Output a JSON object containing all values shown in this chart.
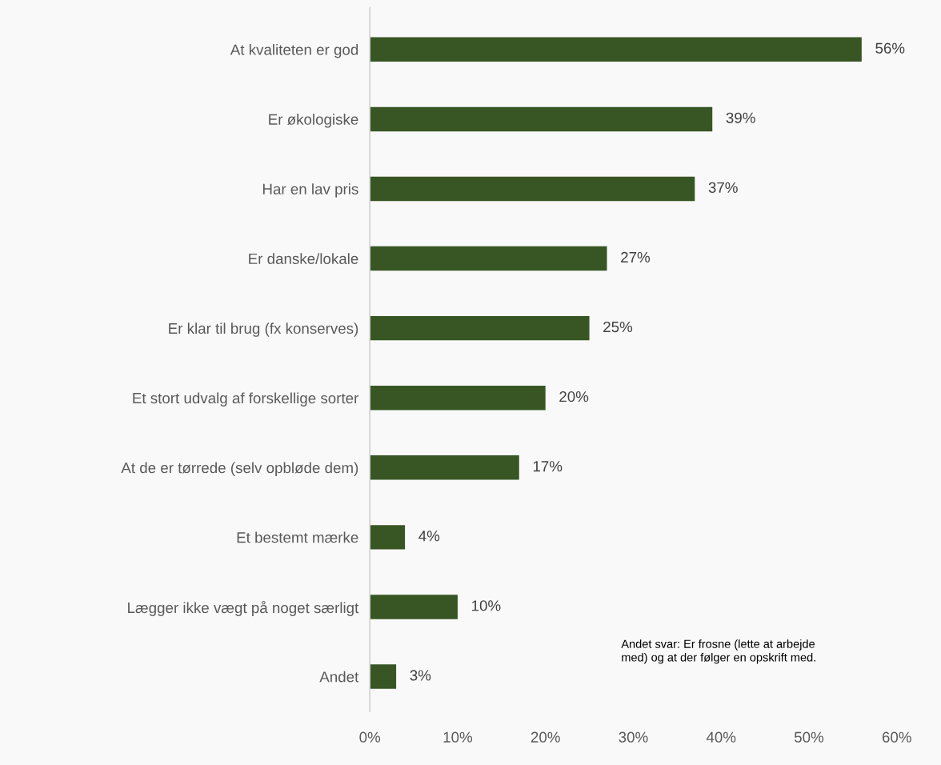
{
  "chart_data": {
    "type": "bar",
    "orientation": "horizontal",
    "categories": [
      "At kvaliteten er god",
      "Er økologiske",
      "Har en lav pris",
      "Er danske/lokale",
      "Er klar til brug (fx konserves)",
      "Et stort udvalg af forskellige sorter",
      "At de er tørrede (selv opbløde dem)",
      "Et bestemt mærke",
      "Lægger ikke vægt på noget særligt",
      "Andet"
    ],
    "values": [
      56,
      39,
      37,
      27,
      25,
      20,
      17,
      4,
      10,
      3
    ],
    "value_labels": [
      "56%",
      "39%",
      "37%",
      "27%",
      "25%",
      "20%",
      "17%",
      "4%",
      "10%",
      "3%"
    ],
    "color": "#375623",
    "xlim": [
      0,
      60
    ],
    "xticks": [
      {
        "value": 0,
        "label": "0%"
      },
      {
        "value": 10,
        "label": "10%"
      },
      {
        "value": 20,
        "label": "20%"
      },
      {
        "value": 30,
        "label": "30%"
      },
      {
        "value": 40,
        "label": "40%"
      },
      {
        "value": 50,
        "label": "50%"
      },
      {
        "value": 60,
        "label": "60%"
      }
    ],
    "grid": false,
    "annotations": [
      "Andet svar: Er frosne (lette at arbejde\nmed) og at der følger en opskrift med."
    ]
  }
}
